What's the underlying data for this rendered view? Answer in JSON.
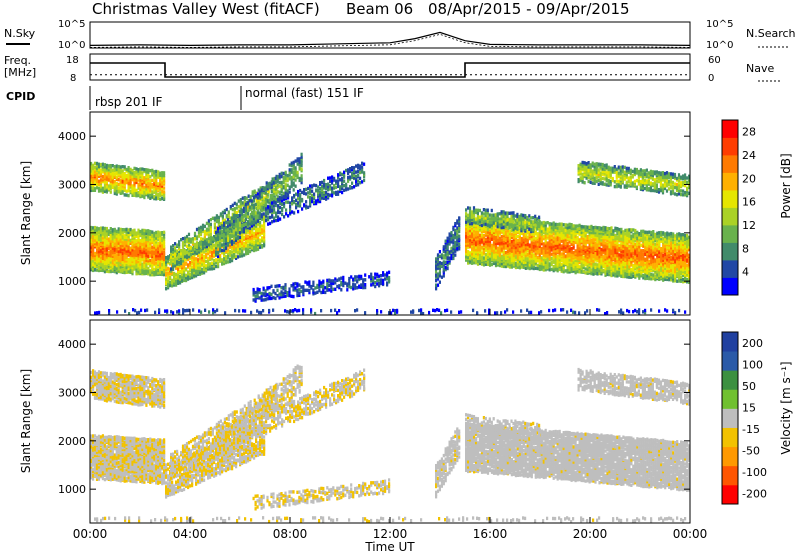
{
  "header": {
    "station": "Christmas Valley West (fitACF)",
    "beam": "Beam 06",
    "period": "08/Apr/2015 - 09/Apr/2015"
  },
  "left_labels": {
    "nsky": "N.Sky",
    "freq": "Freq.",
    "freq_unit": "[MHz]",
    "cpid": "CPID"
  },
  "right_labels": {
    "nsearch": "N.Search",
    "nave": "Nave"
  },
  "cpid_segments": [
    {
      "name": "rbsp 201 IF"
    },
    {
      "name": "normal (fast) 151 IF"
    }
  ],
  "colors": {
    "power": [
      "#0000ff",
      "#2147a5",
      "#418b6b",
      "#69b24d",
      "#aad226",
      "#e6e600",
      "#ffb000",
      "#ff7a00",
      "#ff3d00",
      "#ff0000"
    ],
    "velocity": [
      "#ff0000",
      "#ff5500",
      "#ff9900",
      "#f2c200",
      "#bebebe",
      "#70c030",
      "#3c9040",
      "#2a5aa8",
      "#2040a0"
    ]
  },
  "chart_data": [
    {
      "type": "line",
      "name": "noise",
      "ylabel_left": "N.Sky",
      "ylabel_right": "N.Search",
      "left_ticks": [
        "10^5",
        "10^0"
      ],
      "right_ticks": [
        "10^5",
        "10^0"
      ],
      "x_hours": [
        0,
        2,
        4,
        6,
        8,
        10,
        12,
        13,
        14,
        15,
        16,
        18,
        20,
        22,
        24
      ],
      "y_log10": [
        0.5,
        0.6,
        0.5,
        0.6,
        0.6,
        0.8,
        1.0,
        1.8,
        3.0,
        1.4,
        0.7,
        0.6,
        0.6,
        0.6,
        0.5
      ]
    },
    {
      "type": "line",
      "name": "frequency",
      "left_ticks": [
        "18",
        "8"
      ],
      "right_ticks": [
        "60",
        "0"
      ],
      "steps": [
        {
          "from": 0,
          "to": 3,
          "mhz": 18
        },
        {
          "from": 3,
          "to": 15,
          "mhz": 8
        },
        {
          "from": 15,
          "to": 24,
          "mhz": 18
        }
      ],
      "nave_level": 12
    },
    {
      "type": "heatmap",
      "name": "power",
      "xlabel": "",
      "ylabel": "Slant Range [km]",
      "ylim": [
        300,
        4500
      ],
      "xlim": [
        0,
        24
      ],
      "y_ticks": [
        "1000",
        "2000",
        "3000",
        "4000"
      ],
      "colorbar_title": "Power [dB]",
      "colorbar_ticks": [
        "4",
        "8",
        "12",
        "16",
        "20",
        "24",
        "28"
      ],
      "vmin": 0,
      "vmax": 30
    },
    {
      "type": "heatmap",
      "name": "velocity",
      "xlabel": "Time UT",
      "ylabel": "Slant Range [km]",
      "ylim": [
        300,
        4500
      ],
      "xlim": [
        0,
        24
      ],
      "y_ticks": [
        "1000",
        "2000",
        "3000",
        "4000"
      ],
      "x_ticks": [
        "00:00",
        "04:00",
        "08:00",
        "12:00",
        "16:00",
        "20:00",
        "00:00"
      ],
      "colorbar_title": "Velocity [m s⁻¹]",
      "colorbar_ticks": [
        "200",
        "100",
        "50",
        "15",
        "-15",
        "-50",
        "-100",
        "-200"
      ],
      "vmin": -250,
      "vmax": 250
    }
  ]
}
